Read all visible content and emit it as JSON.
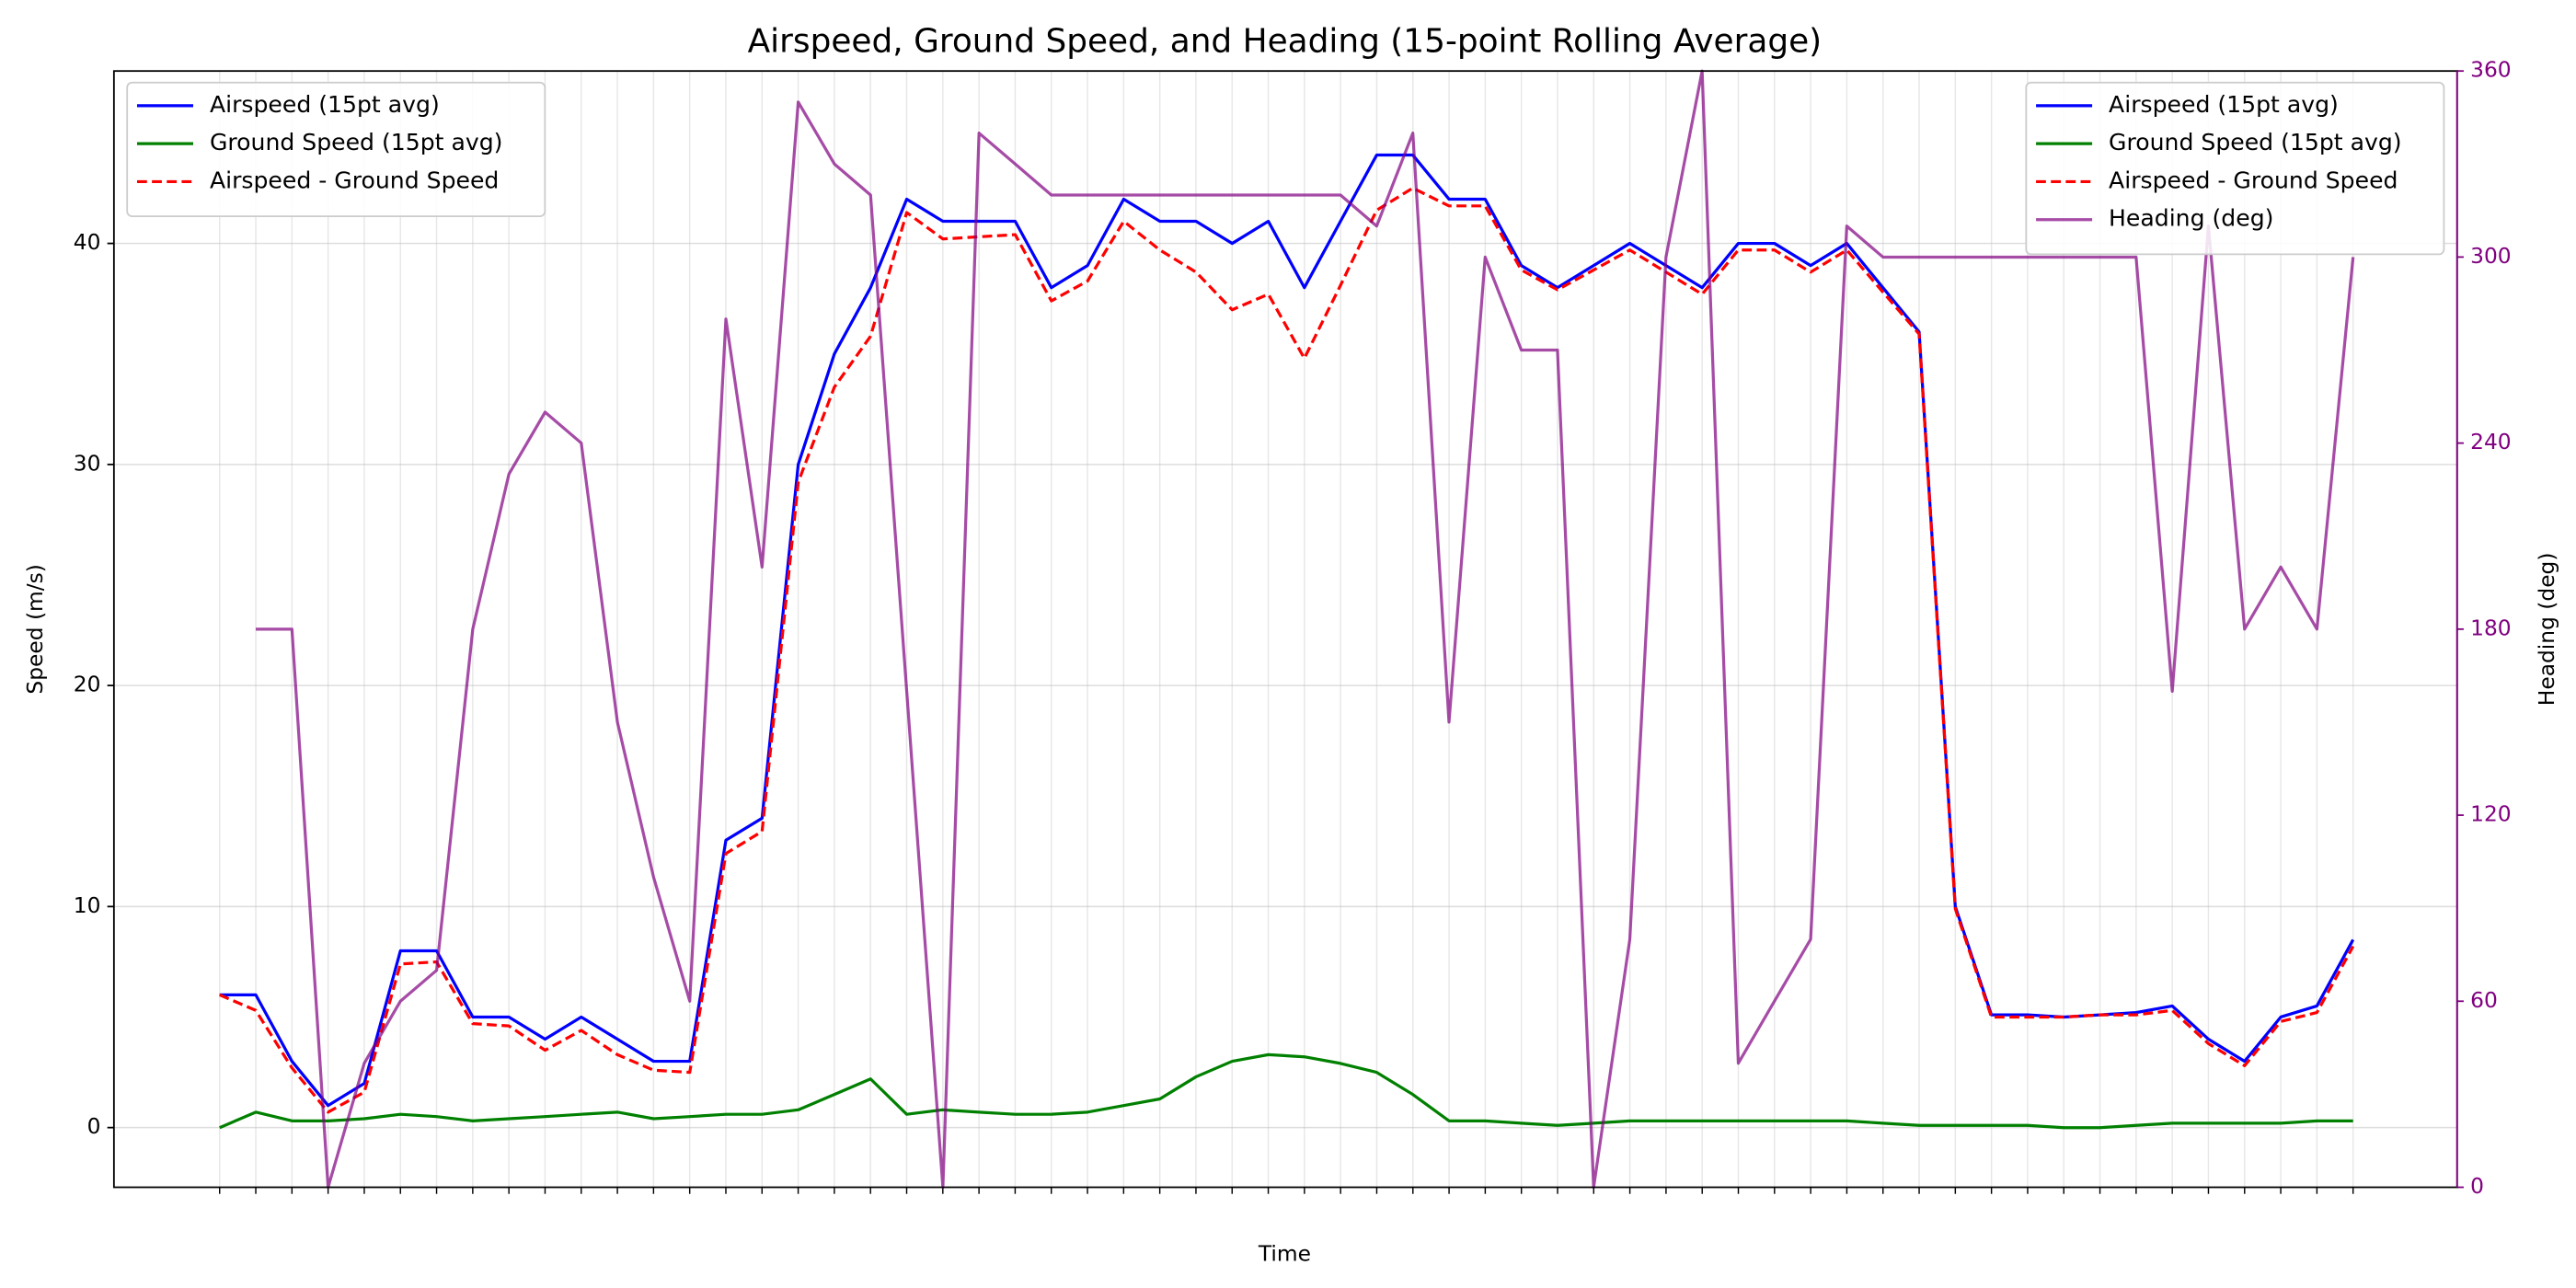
{
  "chart_data": {
    "type": "line",
    "title": "Airspeed, Ground Speed, and Heading (15-point Rolling Average)",
    "x_label": "Time",
    "y_label": "Speed (m/s)",
    "y2_label": "Heading (deg)",
    "categories": [
      null,
      null,
      null,
      null,
      null,
      null,
      null,
      null,
      null,
      null,
      null,
      null,
      null,
      null,
      null,
      null,
      null,
      null,
      null,
      null,
      null,
      null,
      null,
      null,
      null,
      null,
      null,
      null,
      null,
      null,
      null,
      null,
      null,
      null,
      null,
      null,
      null,
      null,
      null,
      null,
      null,
      null,
      null,
      null,
      null,
      null,
      null,
      null,
      null,
      null,
      null,
      null,
      null,
      null,
      null,
      null,
      null,
      null,
      null,
      null
    ],
    "ylim": [
      -2.7,
      47.8
    ],
    "yticks": [
      0,
      10,
      20,
      30,
      40
    ],
    "y2lim": [
      0,
      360
    ],
    "y2ticks": [
      0,
      60,
      120,
      180,
      240,
      300,
      360
    ],
    "y2color": "#800080",
    "grid": true,
    "legend_loc": [
      "upper left",
      "upper right"
    ],
    "series": [
      {
        "name": "Airspeed (15pt avg)",
        "color": "#0000ff",
        "linestyle": "solid",
        "values": [
          6,
          6,
          3,
          1,
          2,
          8,
          8,
          5,
          5,
          4,
          5,
          4,
          3,
          3,
          13,
          14,
          30,
          35,
          38,
          42,
          41,
          41,
          41,
          38,
          39,
          42,
          41,
          41,
          40,
          41,
          38,
          41,
          44,
          44,
          42,
          42,
          39,
          38,
          39,
          40,
          39,
          38,
          40,
          40,
          39,
          40,
          38,
          36,
          10,
          5.1,
          5.1,
          5.0,
          5.1,
          5.2,
          5.5,
          4,
          3,
          5,
          5.5,
          8.5
        ]
      },
      {
        "name": "Ground Speed (15pt avg)",
        "color": "#008000",
        "linestyle": "solid",
        "values": [
          0,
          0.7,
          0.3,
          0.3,
          0.4,
          0.6,
          0.5,
          0.3,
          0.4,
          0.5,
          0.6,
          0.7,
          0.4,
          0.5,
          0.6,
          0.6,
          0.8,
          1.5,
          2.2,
          0.6,
          0.8,
          0.7,
          0.6,
          0.6,
          0.7,
          1.0,
          1.3,
          2.3,
          3.0,
          3.3,
          3.2,
          2.9,
          2.5,
          1.5,
          0.3,
          0.3,
          0.2,
          0.1,
          0.2,
          0.3,
          0.3,
          0.3,
          0.3,
          0.3,
          0.3,
          0.3,
          0.2,
          0.1,
          0.1,
          0.1,
          0.1,
          0.0,
          0.0,
          0.1,
          0.2,
          0.2,
          0.2,
          0.2,
          0.3,
          0.3
        ]
      },
      {
        "name": "Airspeed - Ground Speed",
        "color": "#ff0000",
        "linestyle": "dashed",
        "values": [
          6,
          5.3,
          2.7,
          0.7,
          1.6,
          7.4,
          7.5,
          4.7,
          4.6,
          3.5,
          4.4,
          3.3,
          2.6,
          2.5,
          12.4,
          13.4,
          29.2,
          33.5,
          35.8,
          41.4,
          40.2,
          40.3,
          40.4,
          37.4,
          38.3,
          41,
          39.7,
          38.7,
          37,
          37.7,
          34.8,
          38.1,
          41.5,
          42.5,
          41.7,
          41.7,
          38.8,
          37.9,
          38.8,
          39.7,
          38.7,
          37.7,
          39.7,
          39.7,
          38.7,
          39.7,
          37.8,
          35.9,
          9.9,
          5.0,
          5.0,
          5.0,
          5.1,
          5.1,
          5.3,
          3.8,
          2.8,
          4.8,
          5.2,
          8.2
        ]
      },
      {
        "name": "Heading (deg)",
        "color": "#800080",
        "linestyle": "solid",
        "axis": "y2",
        "values": [
          null,
          180,
          180,
          0,
          40,
          60,
          70,
          180,
          230,
          250,
          240,
          150,
          100,
          60,
          280,
          200,
          350,
          330,
          320,
          160,
          0,
          340,
          330,
          320,
          320,
          320,
          320,
          320,
          320,
          320,
          320,
          320,
          310,
          340,
          150,
          300,
          270,
          270,
          0,
          80,
          300,
          360,
          40,
          60,
          80,
          310,
          300,
          300,
          300,
          300,
          300,
          300,
          300,
          300,
          160,
          310,
          180,
          200,
          180,
          300
        ]
      }
    ]
  }
}
